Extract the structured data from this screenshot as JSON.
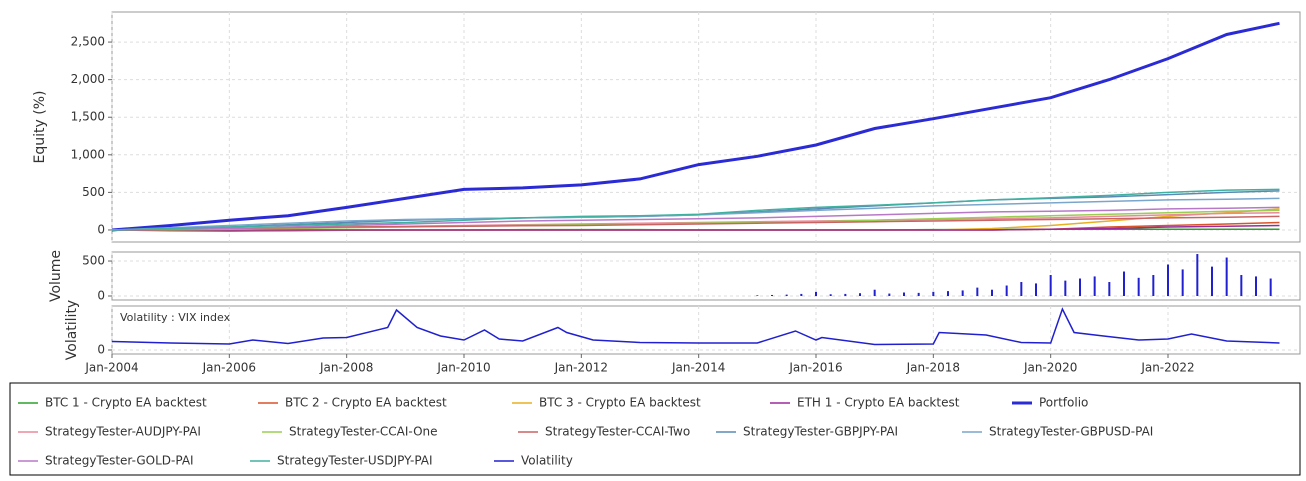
{
  "chart_data": [
    {
      "type": "line",
      "y_label": "Equity (%)",
      "grid": true,
      "xlim": [
        2004,
        2024.25
      ],
      "ylim": [
        -160,
        2900
      ],
      "yticks": [
        0,
        {
          "value": 500,
          "label": "500"
        },
        {
          "value": 1000,
          "label": "1,000"
        },
        {
          "value": 1500,
          "label": "1,500"
        },
        {
          "value": 2000,
          "label": "2,000"
        },
        {
          "value": 2500,
          "label": "2,500"
        }
      ],
      "x": [
        2004,
        2005,
        2006,
        2007,
        2008,
        2009,
        2010,
        2011,
        2012,
        2013,
        2014,
        2015,
        2016,
        2017,
        2018,
        2019,
        2020,
        2021,
        2022,
        2023,
        2023.9
      ],
      "series": [
        {
          "name": "BTC 1 - Crypto EA backtest",
          "color": "#2ca02c",
          "values": [
            0,
            -10,
            -15,
            -10,
            -5,
            0,
            0,
            5,
            5,
            5,
            0,
            0,
            0,
            0,
            5,
            5,
            10,
            10,
            10,
            10,
            10
          ]
        },
        {
          "name": "BTC 2 - Crypto EA backtest",
          "color": "#d9542a",
          "values": [
            0,
            0,
            0,
            0,
            0,
            0,
            0,
            0,
            0,
            0,
            0,
            0,
            0,
            0,
            0,
            0,
            10,
            40,
            60,
            80,
            100
          ]
        },
        {
          "name": "BTC 3 - Crypto EA backtest",
          "color": "#e8b020",
          "values": [
            0,
            0,
            0,
            0,
            0,
            0,
            0,
            0,
            0,
            0,
            0,
            0,
            0,
            0,
            0,
            20,
            60,
            120,
            180,
            230,
            280
          ]
        },
        {
          "name": "ETH 1 - Crypto EA backtest",
          "color": "#9b2a9b",
          "values": [
            0,
            0,
            0,
            0,
            0,
            0,
            0,
            0,
            0,
            0,
            0,
            0,
            0,
            0,
            0,
            0,
            10,
            20,
            40,
            50,
            60
          ]
        },
        {
          "name": "Portfolio",
          "color": "#2b2bd6",
          "values": [
            0,
            60,
            130,
            190,
            300,
            420,
            540,
            560,
            600,
            680,
            870,
            980,
            1130,
            1350,
            1480,
            1620,
            1760,
            2000,
            2280,
            2600,
            2750
          ]
        },
        {
          "name": "StrategyTester-AUDJPY-PAI",
          "color": "#e88a9a",
          "values": [
            0,
            10,
            20,
            30,
            40,
            50,
            60,
            70,
            80,
            90,
            100,
            110,
            120,
            130,
            140,
            150,
            160,
            180,
            200,
            220,
            230
          ]
        },
        {
          "name": "StrategyTester-CCAI-One",
          "color": "#9acd50",
          "values": [
            0,
            5,
            10,
            20,
            30,
            40,
            50,
            60,
            70,
            80,
            90,
            100,
            110,
            130,
            150,
            170,
            190,
            210,
            230,
            250,
            260
          ]
        },
        {
          "name": "StrategyTester-CCAI-Two",
          "color": "#c86464",
          "values": [
            0,
            10,
            20,
            30,
            40,
            45,
            50,
            55,
            60,
            70,
            80,
            90,
            100,
            110,
            120,
            130,
            140,
            150,
            160,
            170,
            180
          ]
        },
        {
          "name": "StrategyTester-GBPJPY-PAI",
          "color": "#5a8ab4",
          "values": [
            0,
            20,
            40,
            70,
            100,
            130,
            150,
            160,
            170,
            180,
            200,
            240,
            280,
            320,
            360,
            400,
            420,
            440,
            470,
            500,
            520
          ]
        },
        {
          "name": "StrategyTester-GBPUSD-PAI",
          "color": "#7aa6cc",
          "values": [
            0,
            30,
            60,
            90,
            120,
            140,
            150,
            160,
            170,
            180,
            200,
            230,
            260,
            290,
            320,
            340,
            360,
            380,
            400,
            410,
            420
          ]
        },
        {
          "name": "StrategyTester-GOLD-PAI",
          "color": "#b878c8",
          "values": [
            0,
            10,
            20,
            40,
            60,
            80,
            100,
            120,
            130,
            140,
            150,
            160,
            180,
            200,
            220,
            240,
            250,
            260,
            280,
            290,
            300
          ]
        },
        {
          "name": "StrategyTester-USDJPY-PAI",
          "color": "#40b0a0",
          "values": [
            0,
            20,
            40,
            60,
            80,
            100,
            130,
            160,
            180,
            190,
            210,
            260,
            300,
            330,
            360,
            400,
            430,
            460,
            500,
            530,
            540
          ]
        }
      ]
    },
    {
      "type": "volume",
      "y_label": "Volume",
      "grid": true,
      "color": "#2020d0",
      "xlim": [
        2004,
        2024.25
      ],
      "ylim": [
        -57,
        629
      ],
      "yticks": [
        0,
        500
      ],
      "x": [
        2015,
        2015.25,
        2015.5,
        2015.75,
        2016,
        2016.25,
        2016.5,
        2016.75,
        2017,
        2017.25,
        2017.5,
        2017.75,
        2018,
        2018.25,
        2018.5,
        2018.75,
        2019,
        2019.25,
        2019.5,
        2019.75,
        2020,
        2020.25,
        2020.5,
        2020.75,
        2021,
        2021.25,
        2021.5,
        2021.75,
        2022,
        2022.25,
        2022.5,
        2022.75,
        2023,
        2023.25,
        2023.5,
        2023.75
      ],
      "values": [
        10,
        15,
        20,
        30,
        60,
        25,
        30,
        40,
        90,
        35,
        50,
        45,
        60,
        70,
        80,
        120,
        90,
        150,
        200,
        180,
        300,
        220,
        250,
        280,
        200,
        350,
        260,
        300,
        450,
        380,
        600,
        420,
        550,
        300,
        280,
        250
      ]
    },
    {
      "type": "line",
      "y_label": "Volatility",
      "annotation": "Volatility : VIX index",
      "grid": true,
      "xlim": [
        2004,
        2024.25
      ],
      "ylim": [
        -8,
        88
      ],
      "yticks": [
        0
      ],
      "xticks": [
        {
          "value": 2004,
          "label": "Jan-2004"
        },
        {
          "value": 2006,
          "label": "Jan-2006"
        },
        {
          "value": 2008,
          "label": "Jan-2008"
        },
        {
          "value": 2010,
          "label": "Jan-2010"
        },
        {
          "value": 2012,
          "label": "Jan-2012"
        },
        {
          "value": 2014,
          "label": "Jan-2014"
        },
        {
          "value": 2016,
          "label": "Jan-2016"
        },
        {
          "value": 2018,
          "label": "Jan-2018"
        },
        {
          "value": 2020,
          "label": "Jan-2020"
        },
        {
          "value": 2022,
          "label": "Jan-2022"
        }
      ],
      "x": [
        2004,
        2005,
        2006,
        2006.4,
        2007,
        2007.6,
        2008,
        2008.7,
        2008.85,
        2009.2,
        2009.6,
        2010,
        2010.35,
        2010.6,
        2011,
        2011.6,
        2011.75,
        2012.2,
        2013,
        2014,
        2015,
        2015.65,
        2016,
        2016.1,
        2017,
        2018,
        2018.1,
        2018.9,
        2019.5,
        2020,
        2020.2,
        2020.4,
        2020.9,
        2021.5,
        2022,
        2022.4,
        2023,
        2023.9
      ],
      "series": [
        {
          "name": "Volatility",
          "color": "#2020d0",
          "values": [
            17,
            14,
            12,
            20,
            13,
            24,
            25,
            45,
            80,
            45,
            28,
            20,
            40,
            22,
            18,
            45,
            35,
            20,
            15,
            14,
            14,
            38,
            20,
            25,
            11,
            12,
            35,
            30,
            15,
            14,
            82,
            35,
            28,
            20,
            22,
            32,
            18,
            14
          ]
        }
      ]
    }
  ]
}
